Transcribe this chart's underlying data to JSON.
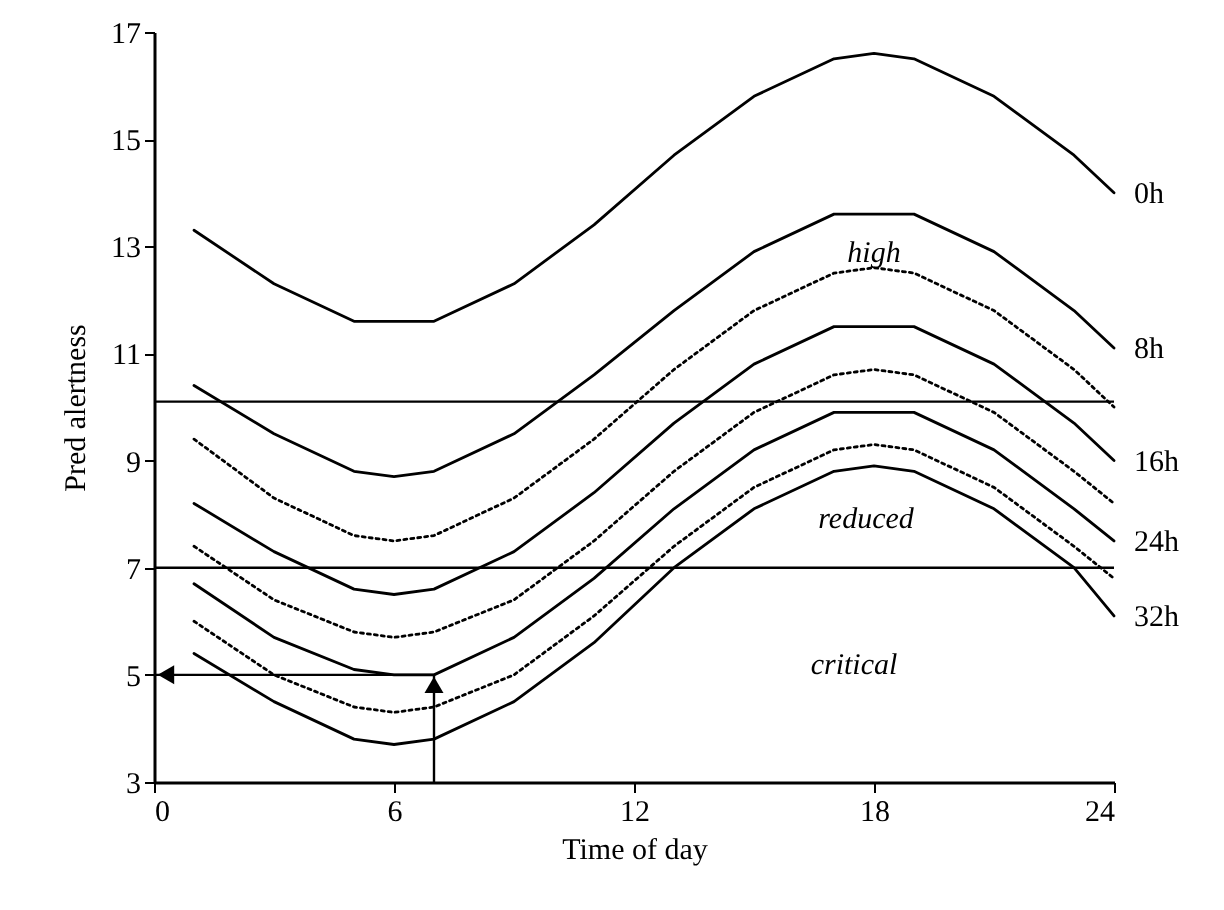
{
  "chart_data": {
    "type": "line",
    "xlabel": "Time of day",
    "ylabel": "Pred alertness",
    "xlim": [
      0,
      24
    ],
    "ylim": [
      3,
      17
    ],
    "xticks": [
      0,
      6,
      12,
      18,
      24
    ],
    "yticks": [
      3,
      5,
      7,
      9,
      11,
      13,
      15,
      17
    ],
    "grid": false,
    "x": [
      1,
      3,
      5,
      6,
      7,
      9,
      11,
      13,
      15,
      17,
      18,
      19,
      21,
      23,
      24
    ],
    "series": [
      {
        "name": "0h",
        "color": "#000000",
        "line_style": "solid",
        "values": [
          13.3,
          12.3,
          11.6,
          11.6,
          11.6,
          12.3,
          13.4,
          14.7,
          15.8,
          16.5,
          16.6,
          16.5,
          15.8,
          14.7,
          14.0
        ]
      },
      {
        "name": "8h",
        "color": "#000000",
        "line_style": "solid",
        "values": [
          10.4,
          9.5,
          8.8,
          8.7,
          8.8,
          9.5,
          10.6,
          11.8,
          12.9,
          13.6,
          13.6,
          13.6,
          12.9,
          11.8,
          11.1
        ]
      },
      {
        "color": "#000000",
        "line_style": "dotted",
        "values": [
          9.4,
          8.3,
          7.6,
          7.5,
          7.6,
          8.3,
          9.4,
          10.7,
          11.8,
          12.5,
          12.6,
          12.5,
          11.8,
          10.7,
          10.0
        ]
      },
      {
        "name": "16h",
        "color": "#000000",
        "line_style": "solid",
        "values": [
          8.2,
          7.3,
          6.6,
          6.5,
          6.6,
          7.3,
          8.4,
          9.7,
          10.8,
          11.5,
          11.5,
          11.5,
          10.8,
          9.7,
          9.0
        ]
      },
      {
        "color": "#000000",
        "line_style": "dotted",
        "values": [
          7.4,
          6.4,
          5.8,
          5.7,
          5.8,
          6.4,
          7.5,
          8.8,
          9.9,
          10.6,
          10.7,
          10.6,
          9.9,
          8.8,
          8.2
        ]
      },
      {
        "name": "24h",
        "color": "#000000",
        "line_style": "solid",
        "values": [
          6.7,
          5.7,
          5.1,
          5.0,
          5.0,
          5.7,
          6.8,
          8.1,
          9.2,
          9.9,
          9.9,
          9.9,
          9.2,
          8.1,
          7.5
        ]
      },
      {
        "color": "#000000",
        "line_style": "dotted",
        "values": [
          6.0,
          5.0,
          4.4,
          4.3,
          4.4,
          5.0,
          6.1,
          7.4,
          8.5,
          9.2,
          9.3,
          9.2,
          8.5,
          7.4,
          6.8
        ]
      },
      {
        "name": "32h",
        "color": "#000000",
        "line_style": "solid",
        "values": [
          5.4,
          4.5,
          3.8,
          3.7,
          3.8,
          4.5,
          5.6,
          7.0,
          8.1,
          8.8,
          8.9,
          8.8,
          8.1,
          7.0,
          6.1
        ]
      }
    ],
    "ref_lines": [
      {
        "axis": "y",
        "value": 10.1,
        "color": "#000000"
      },
      {
        "axis": "y",
        "value": 7.0,
        "color": "#000000"
      }
    ],
    "annotations": [
      "high",
      "reduced",
      "critical"
    ]
  }
}
